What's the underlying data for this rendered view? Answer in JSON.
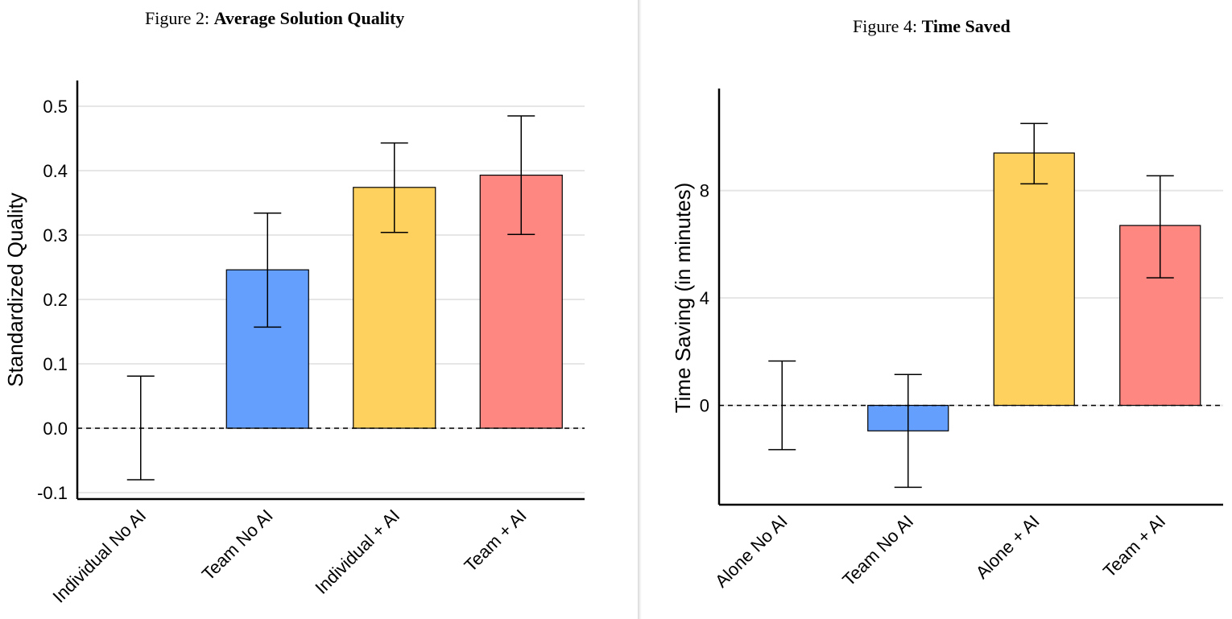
{
  "colors": {
    "blue": "#649ffe",
    "yellow": "#fed05e",
    "red": "#fe8782",
    "grid": "#e6e6e6",
    "axis": "#000000"
  },
  "chart_data": [
    {
      "type": "bar",
      "figure_prefix": "Figure 2:",
      "title": "Average Solution Quality",
      "xlabel": "",
      "ylabel": "Standardized Quality",
      "ylim": [
        -0.11,
        0.54
      ],
      "yticks": [
        -0.1,
        0.0,
        0.1,
        0.2,
        0.3,
        0.4,
        0.5
      ],
      "ytick_labels": [
        "-0.1",
        "0.0",
        "0.1",
        "0.2",
        "0.3",
        "0.4",
        "0.5"
      ],
      "grid": true,
      "reference_line": 0,
      "categories": [
        "Individual No AI",
        "Team No AI",
        "Individual + AI",
        "Team + AI"
      ],
      "values": [
        0.0,
        0.246,
        0.374,
        0.393
      ],
      "error_low": [
        -0.08,
        0.157,
        0.304,
        0.301
      ],
      "error_high": [
        0.081,
        0.334,
        0.443,
        0.485
      ],
      "bar_colors": [
        null,
        "blue",
        "yellow",
        "red"
      ]
    },
    {
      "type": "bar",
      "figure_prefix": "Figure 4:",
      "title": "Time Saved",
      "xlabel": "",
      "ylabel": "Time Saving (in minutes)",
      "ylim": [
        -3.7,
        11.8
      ],
      "yticks": [
        0,
        4,
        8
      ],
      "ytick_labels": [
        "0",
        "4",
        "8"
      ],
      "grid": true,
      "reference_line": 0,
      "categories": [
        "Alone No AI",
        "Team No AI",
        "Alone + AI",
        "Team + AI"
      ],
      "values": [
        0.0,
        -0.95,
        9.4,
        6.7
      ],
      "error_low": [
        -1.65,
        -3.05,
        8.25,
        4.75
      ],
      "error_high": [
        1.65,
        1.15,
        10.5,
        8.55
      ],
      "bar_colors": [
        null,
        "blue",
        "yellow",
        "red"
      ]
    }
  ]
}
